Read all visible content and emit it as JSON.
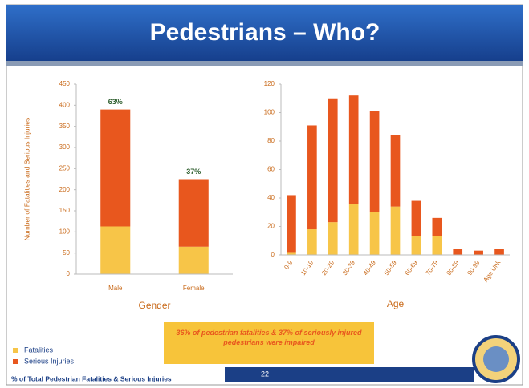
{
  "slide": {
    "title": "Pedestrians – Who?",
    "note": "36% of pedestrian fatalities & 37% of seriously injured pedestrians were impaired",
    "footer": "% of Total Pedestrian Fatalities & Serious Injuries",
    "page": "22"
  },
  "chart_data": [
    {
      "type": "stacked_bar",
      "xlabel": "Gender",
      "ylabel": "Number of Fatalities and Serious Injuries",
      "categories": [
        "Male",
        "Female"
      ],
      "series": [
        {
          "name": "Fatalities",
          "color": "#f7c548",
          "values": [
            113,
            65
          ]
        },
        {
          "name": "Serious Injuries",
          "color": "#e8571e",
          "values": [
            277,
            160
          ]
        }
      ],
      "bar_labels": [
        "63%",
        "37%"
      ],
      "ylim": [
        0,
        450
      ],
      "yticks": [
        0,
        50,
        100,
        150,
        200,
        250,
        300,
        350,
        400,
        450
      ]
    },
    {
      "type": "stacked_bar",
      "xlabel": "Age",
      "categories": [
        "0-9",
        "10-19",
        "20-29",
        "30-39",
        "40-49",
        "50-59",
        "60-69",
        "70-79",
        "80-89",
        "90-99",
        "Age Unk"
      ],
      "series": [
        {
          "name": "Fatalities",
          "color": "#f7c548",
          "values": [
            2,
            18,
            23,
            36,
            30,
            34,
            13,
            13,
            0,
            0,
            0
          ]
        },
        {
          "name": "Serious Injuries",
          "color": "#e8571e",
          "values": [
            40,
            73,
            87,
            76,
            71,
            50,
            25,
            13,
            4,
            3,
            4
          ]
        }
      ],
      "ylim": [
        0,
        120
      ],
      "yticks": [
        0,
        20,
        40,
        60,
        80,
        100,
        120
      ]
    }
  ]
}
